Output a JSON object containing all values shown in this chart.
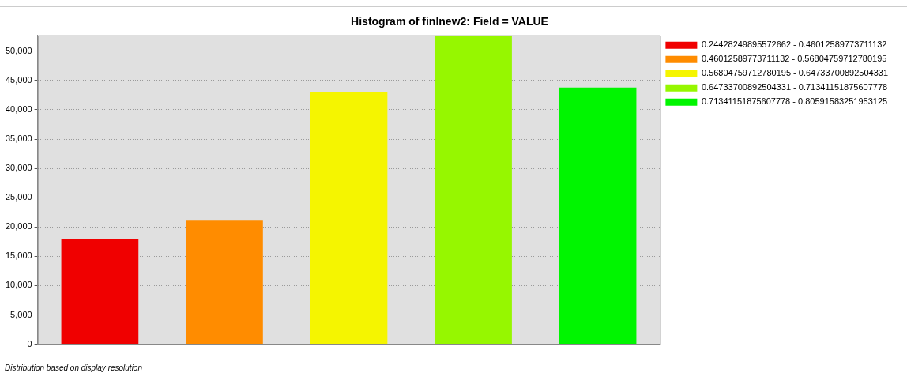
{
  "chart_data": {
    "type": "bar",
    "title": "Histogram of finlnew2: Field = VALUE",
    "annotations": [
      "Distribution based on display resolution"
    ],
    "categories": [
      null,
      null,
      null,
      null,
      null
    ],
    "series": [
      {
        "name": "0.24428249895572662 - 0.46012589773711132",
        "color": "#f00000",
        "values": [
          18000,
          null,
          null,
          null,
          null
        ]
      },
      {
        "name": "0.46012589773711132 - 0.56804759712780195",
        "color": "#ff8c00",
        "values": [
          null,
          21100,
          null,
          null,
          null
        ]
      },
      {
        "name": "0.56804759712780195 - 0.64733700892504331",
        "color": "#f5f500",
        "values": [
          null,
          null,
          43000,
          null,
          null
        ]
      },
      {
        "name": "0.64733700892504331 - 0.71341151875607778",
        "color": "#96f700",
        "values": [
          null,
          null,
          null,
          52700,
          null
        ]
      },
      {
        "name": "0.71341151875607778 - 0.80591583251953125",
        "color": "#00f500",
        "values": [
          null,
          null,
          null,
          null,
          43800
        ]
      }
    ],
    "ylim": [
      0,
      52700
    ],
    "yticks": [
      0,
      {
        "value": 5000,
        "label": "5,000"
      },
      {
        "value": 10000,
        "label": "10,000"
      },
      {
        "value": 15000,
        "label": "15,000"
      },
      {
        "value": 20000,
        "label": "20,000"
      },
      {
        "value": 25000,
        "label": "25,000"
      },
      {
        "value": 30000,
        "label": "30,000"
      },
      {
        "value": 35000,
        "label": "35,000"
      },
      {
        "value": 40000,
        "label": "40,000"
      },
      {
        "value": 45000,
        "label": "45,000"
      },
      {
        "value": 50000,
        "label": "50,000"
      }
    ],
    "grid": "y",
    "legend": "top right"
  }
}
